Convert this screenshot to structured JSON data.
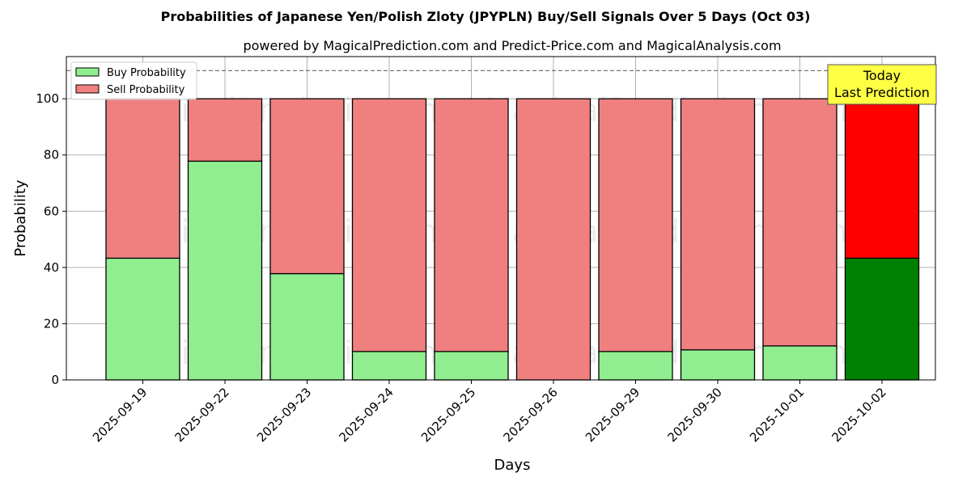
{
  "chart_data": {
    "type": "bar",
    "stacked": true,
    "title": "Probabilities of Japanese Yen/Polish Zloty (JPYPLN) Buy/Sell Signals Over 5 Days (Oct 03)",
    "subtitle": "powered by MagicalPrediction.com and Predict-Price.com and MagicalAnalysis.com",
    "xlabel": "Days",
    "ylabel": "Probability",
    "ylim": [
      0,
      115
    ],
    "yticks": [
      0,
      20,
      40,
      60,
      80,
      100
    ],
    "grid": true,
    "legend_position": "top-left",
    "reference_line": 110,
    "categories": [
      "2025-09-19",
      "2025-09-22",
      "2025-09-23",
      "2025-09-24",
      "2025-09-25",
      "2025-09-26",
      "2025-09-29",
      "2025-09-30",
      "2025-10-01",
      "2025-10-02"
    ],
    "series": [
      {
        "name": "Buy Probability",
        "values": [
          43.3,
          77.8,
          37.8,
          10.1,
          10.1,
          0.0,
          10.1,
          10.7,
          12.1,
          43.3
        ]
      },
      {
        "name": "Sell Probability",
        "values": [
          56.7,
          22.2,
          62.2,
          89.9,
          89.9,
          100.0,
          89.9,
          89.3,
          87.9,
          56.7
        ]
      }
    ],
    "colors": {
      "buy": "#90ee90",
      "sell": "#f08080",
      "buy_highlight": "#008000",
      "sell_highlight": "#ff0000",
      "annotation_bg": "#ffff44"
    },
    "annotation": {
      "lines": [
        "Today",
        "Last Prediction"
      ],
      "category_index": 9
    },
    "watermarks": [
      "MagicalAnalysis.com",
      "MagicalPrediction.com"
    ]
  }
}
